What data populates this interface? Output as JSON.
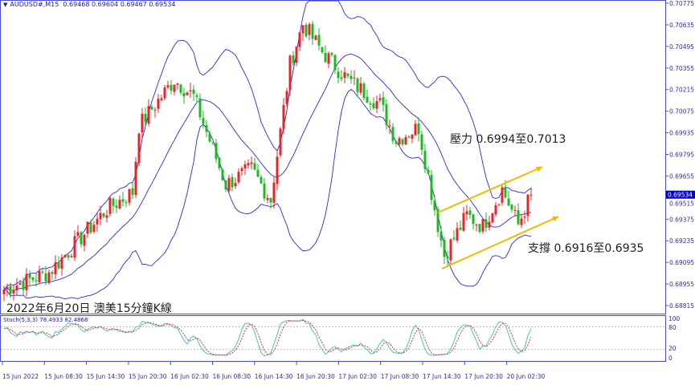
{
  "header": {
    "symbol": "AUDUSD#,M15",
    "open": "0.69468",
    "high": "0.69604",
    "low": "0.69467",
    "close": "0.69534"
  },
  "caption": "2022年6月20日 澳美15分鐘K線",
  "annotations": {
    "resistance": "壓力 0.6994至0.7013",
    "support": "支撐 0.6916至0.6935"
  },
  "stoch_label": "Stoch(5,3,3) 78.4933 82.4868",
  "colors": {
    "bull": "#e8232a",
    "bear": "#1fb820",
    "bands": "#2b2bd0",
    "axis": "#4a4ad8",
    "arrow": "#f5b800",
    "stoch_main": "#40c8c0",
    "stoch_signal": "#e83030",
    "current_price_bg": "#0000c8"
  },
  "chart_data": {
    "type": "candlestick",
    "price_ticks": [
      "0.70775",
      "0.70635",
      "0.70495",
      "0.70355",
      "0.70215",
      "0.70075",
      "0.69935",
      "0.69795",
      "0.69655",
      "0.69515",
      "0.69375",
      "0.69235",
      "0.69095",
      "0.68955",
      "0.68815"
    ],
    "current_price": "0.69534",
    "ylim": [
      0.68815,
      0.70775
    ],
    "stoch_ticks": [
      "100",
      "80",
      "20",
      "0"
    ],
    "time_ticks": [
      "15 Jun 2022",
      "15 Jun 08:30",
      "15 Jun 14:30",
      "15 Jun 20:30",
      "16 Jun 02:30",
      "16 Jun 08:30",
      "16 Jun 14:30",
      "16 Jun 20:30",
      "17 Jun 02:30",
      "17 Jun 08:30",
      "17 Jun 14:30",
      "17 Jun 20:30",
      "20 Jun 02:30"
    ],
    "indicators": [
      "Bollinger Bands(20,2)",
      "Stoch(5,3,3)"
    ],
    "approx_close_path": [
      [
        0,
        0.6892
      ],
      [
        14,
        0.6903
      ],
      [
        32,
        0.6944
      ],
      [
        40,
        0.6955
      ],
      [
        42,
        0.6998
      ],
      [
        53,
        0.7028
      ],
      [
        59,
        0.7017
      ],
      [
        69,
        0.696
      ],
      [
        77,
        0.697
      ],
      [
        83,
        0.695
      ],
      [
        89,
        0.7038
      ],
      [
        93,
        0.7064
      ],
      [
        99,
        0.7046
      ],
      [
        107,
        0.7028
      ],
      [
        117,
        0.7012
      ],
      [
        122,
        0.6989
      ],
      [
        129,
        0.6997
      ],
      [
        135,
        0.6934
      ],
      [
        137,
        0.6914
      ],
      [
        144,
        0.694
      ],
      [
        149,
        0.6933
      ],
      [
        155,
        0.6957
      ],
      [
        160,
        0.6934
      ],
      [
        164,
        0.69534
      ]
    ]
  }
}
